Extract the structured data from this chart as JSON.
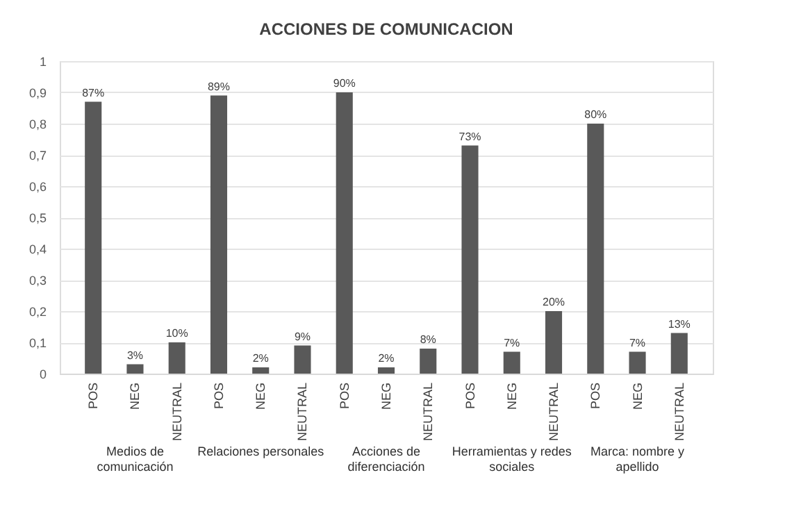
{
  "chart_data": {
    "type": "bar",
    "title": "ACCIONES DE COMUNICACION",
    "categories": [
      "POS",
      "NEG",
      "NEUTRAL",
      "POS",
      "NEG",
      "NEUTRAL",
      "POS",
      "NEG",
      "NEUTRAL",
      "POS",
      "NEG",
      "NEUTRAL",
      "POS",
      "NEG",
      "NEUTRAL"
    ],
    "values": [
      0.87,
      0.03,
      0.1,
      0.89,
      0.02,
      0.09,
      0.9,
      0.02,
      0.08,
      0.73,
      0.07,
      0.2,
      0.8,
      0.07,
      0.13
    ],
    "value_labels": [
      "87%",
      "3%",
      "10%",
      "89%",
      "2%",
      "9%",
      "90%",
      "2%",
      "8%",
      "73%",
      "7%",
      "20%",
      "80%",
      "7%",
      "13%"
    ],
    "color": "#595959",
    "ylim": [
      0,
      1
    ],
    "yticks": [
      0,
      {
        "value": 0.1,
        "label": "0,1"
      },
      {
        "value": 0.2,
        "label": "0,2"
      },
      {
        "value": 0.3,
        "label": "0,3"
      },
      {
        "value": 0.4,
        "label": "0,4"
      },
      {
        "value": 0.5,
        "label": "0,5"
      },
      {
        "value": 0.6,
        "label": "0,6"
      },
      {
        "value": 0.7,
        "label": "0,7"
      },
      {
        "value": 0.8,
        "label": "0,8"
      },
      {
        "value": 0.9,
        "label": "0,9"
      },
      1
    ],
    "grid": "y",
    "annotations": [
      "Medios  de comunicación",
      "Relaciones personales",
      "Acciones de diferenciación",
      "Herramientas y redes sociales",
      "Marca: nombre y apellido"
    ]
  }
}
